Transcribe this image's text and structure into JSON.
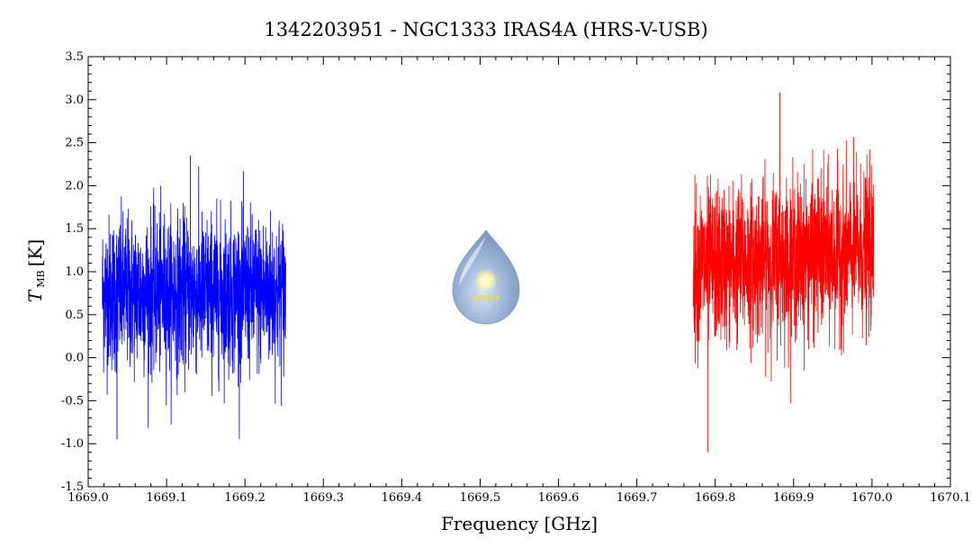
{
  "chart_data": {
    "type": "line",
    "title": "1342203951 - NGC1333 IRAS4A (HRS-V-USB)",
    "xlabel": "Frequency [GHz]",
    "ylabel_main": "T",
    "ylabel_sub": "MB",
    "ylabel_unit": "[K]",
    "xlim": [
      1669.0,
      1670.1
    ],
    "ylim": [
      -1.5,
      3.5
    ],
    "xticks": [
      "1669.0",
      "1669.1",
      "1669.2",
      "1669.3",
      "1669.4",
      "1669.5",
      "1669.6",
      "1669.7",
      "1669.8",
      "1669.9",
      "1670.0",
      "1670.1"
    ],
    "xtick_values": [
      1669.0,
      1669.1,
      1669.2,
      1669.3,
      1669.4,
      1669.5,
      1669.6,
      1669.7,
      1669.8,
      1669.9,
      1670.0,
      1670.1
    ],
    "yticks": [
      "-1.5",
      "-1.0",
      "-0.5",
      "0.0",
      "0.5",
      "1.0",
      "1.5",
      "2.0",
      "2.5",
      "3.0",
      "3.5"
    ],
    "ytick_values": [
      -1.5,
      -1.0,
      -0.5,
      0.0,
      0.5,
      1.0,
      1.5,
      2.0,
      2.5,
      3.0,
      3.5
    ],
    "grid": false,
    "series": [
      {
        "color": "#0000ff",
        "x_start": 1669.018,
        "x_end": 1669.252,
        "points": 1400,
        "mean": 0.75,
        "noise_sigma": 0.45,
        "y_min": -0.95,
        "y_max": 2.35
      },
      {
        "color": "#ff0000",
        "x_start": 1669.772,
        "x_end": 1670.002,
        "points": 1400,
        "mean_start": 1.05,
        "mean_end": 1.25,
        "noise_sigma": 0.45,
        "y_min": -1.1,
        "y_max": 3.08
      }
    ]
  },
  "logo": {
    "icon": "wish-drop-logo",
    "text": "WISH"
  }
}
